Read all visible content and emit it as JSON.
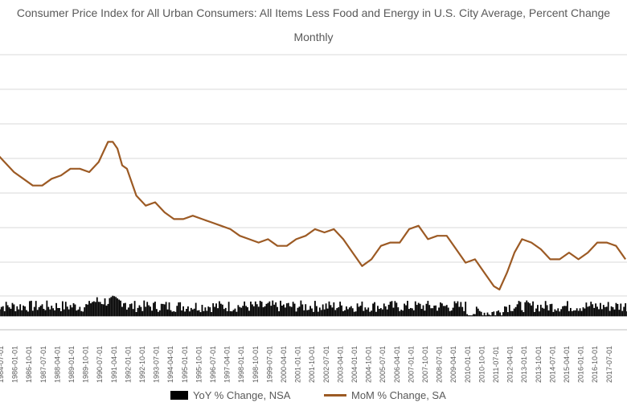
{
  "title_line1": "Consumer Price Index for All Urban Consumers: All Items Less Food and Energy in U.S. City Average, Percent Change",
  "title_line2": "Monthly",
  "legend": {
    "yoy": "YoY % Change, NSA",
    "mom": "MoM % Change, SA"
  },
  "colors": {
    "mom_line": "#9c5a24",
    "yoy_bars": "#000000",
    "grid": "#d9d9d9",
    "axis_text": "#595959"
  },
  "chart_data": {
    "type": "line",
    "title": "Consumer Price Index for All Urban Consumers: All Items Less Food and Energy in U.S. City Average, Percent Change",
    "subtitle": "Monthly",
    "grid": true,
    "legend_position": "bottom",
    "y_tick_labels_visible": false,
    "x_tick_labels": [
      "1984-07-01",
      "1986-01-01",
      "1986-10-01",
      "1987-07-01",
      "1988-04-01",
      "1989-01-01",
      "1989-10-01",
      "1990-07-01",
      "1991-04-01",
      "1992-01-01",
      "1992-10-01",
      "1993-07-01",
      "1994-04-01",
      "1995-01-01",
      "1995-10-01",
      "1996-07-01",
      "1997-04-01",
      "1998-01-01",
      "1998-10-01",
      "1999-07-01",
      "2000-04-01",
      "2001-01-01",
      "2001-10-01",
      "2002-07-01",
      "2003-04-01",
      "2004-01-01",
      "2004-10-01",
      "2005-07-01",
      "2006-04-01",
      "2007-01-01",
      "2007-10-01",
      "2008-07-01",
      "2009-04-01",
      "2010-01-01",
      "2010-10-01",
      "2011-07-01",
      "2012-04-01",
      "2013-01-01",
      "2013-10-01",
      "2014-07-01",
      "2015-04-01",
      "2016-01-01",
      "2016-10-01",
      "2017-07-01"
    ],
    "series": [
      {
        "name": "MoM % Change, SA",
        "style": "line",
        "x": [
          1984.0,
          1984.5,
          1985.0,
          1985.5,
          1986.0,
          1986.5,
          1987.0,
          1987.5,
          1988.0,
          1988.5,
          1989.0,
          1989.5,
          1990.0,
          1990.25,
          1990.5,
          1990.75,
          1991.0,
          1991.5,
          1992.0,
          1992.5,
          1993.0,
          1993.5,
          1994.0,
          1994.5,
          1995.0,
          1995.5,
          1996.0,
          1996.5,
          1997.0,
          1997.5,
          1998.0,
          1998.5,
          1999.0,
          1999.5,
          2000.0,
          2000.5,
          2001.0,
          2001.5,
          2002.0,
          2002.5,
          2003.0,
          2003.5,
          2004.0,
          2004.5,
          2005.0,
          2005.5,
          2006.0,
          2006.5,
          2007.0,
          2007.5,
          2008.0,
          2008.5,
          2009.0,
          2009.5,
          2010.0,
          2010.5,
          2010.8,
          2011.2,
          2011.6,
          2012.0,
          2012.5,
          2013.0,
          2013.5,
          2014.0,
          2014.5,
          2015.0,
          2015.5,
          2016.0,
          2016.5,
          2017.0,
          2017.5
        ],
        "values": [
          4.9,
          4.6,
          4.3,
          4.1,
          3.9,
          3.9,
          4.1,
          4.2,
          4.4,
          4.4,
          4.3,
          4.6,
          5.2,
          5.2,
          5.0,
          4.5,
          4.4,
          3.6,
          3.3,
          3.4,
          3.1,
          2.9,
          2.9,
          3.0,
          2.9,
          2.8,
          2.7,
          2.6,
          2.4,
          2.3,
          2.2,
          2.3,
          2.1,
          2.1,
          2.3,
          2.4,
          2.6,
          2.5,
          2.6,
          2.3,
          1.9,
          1.5,
          1.7,
          2.1,
          2.2,
          2.2,
          2.6,
          2.7,
          2.3,
          2.4,
          2.4,
          2.0,
          1.6,
          1.7,
          1.3,
          0.9,
          0.8,
          1.3,
          1.9,
          2.3,
          2.2,
          2.0,
          1.7,
          1.7,
          1.9,
          1.7,
          1.9,
          2.2,
          2.2,
          2.1,
          1.7
        ]
      },
      {
        "name": "YoY % Change, NSA",
        "style": "bar",
        "x_range": [
          1984.0,
          2017.75
        ],
        "typical_values": [
          0.25,
          0.35
        ],
        "note_values": "monthly bars, mostly between 0.1 and 0.6"
      }
    ],
    "xlim": [
      1984.0,
      2017.75
    ],
    "ylim": [
      -0.4,
      7.8
    ]
  }
}
